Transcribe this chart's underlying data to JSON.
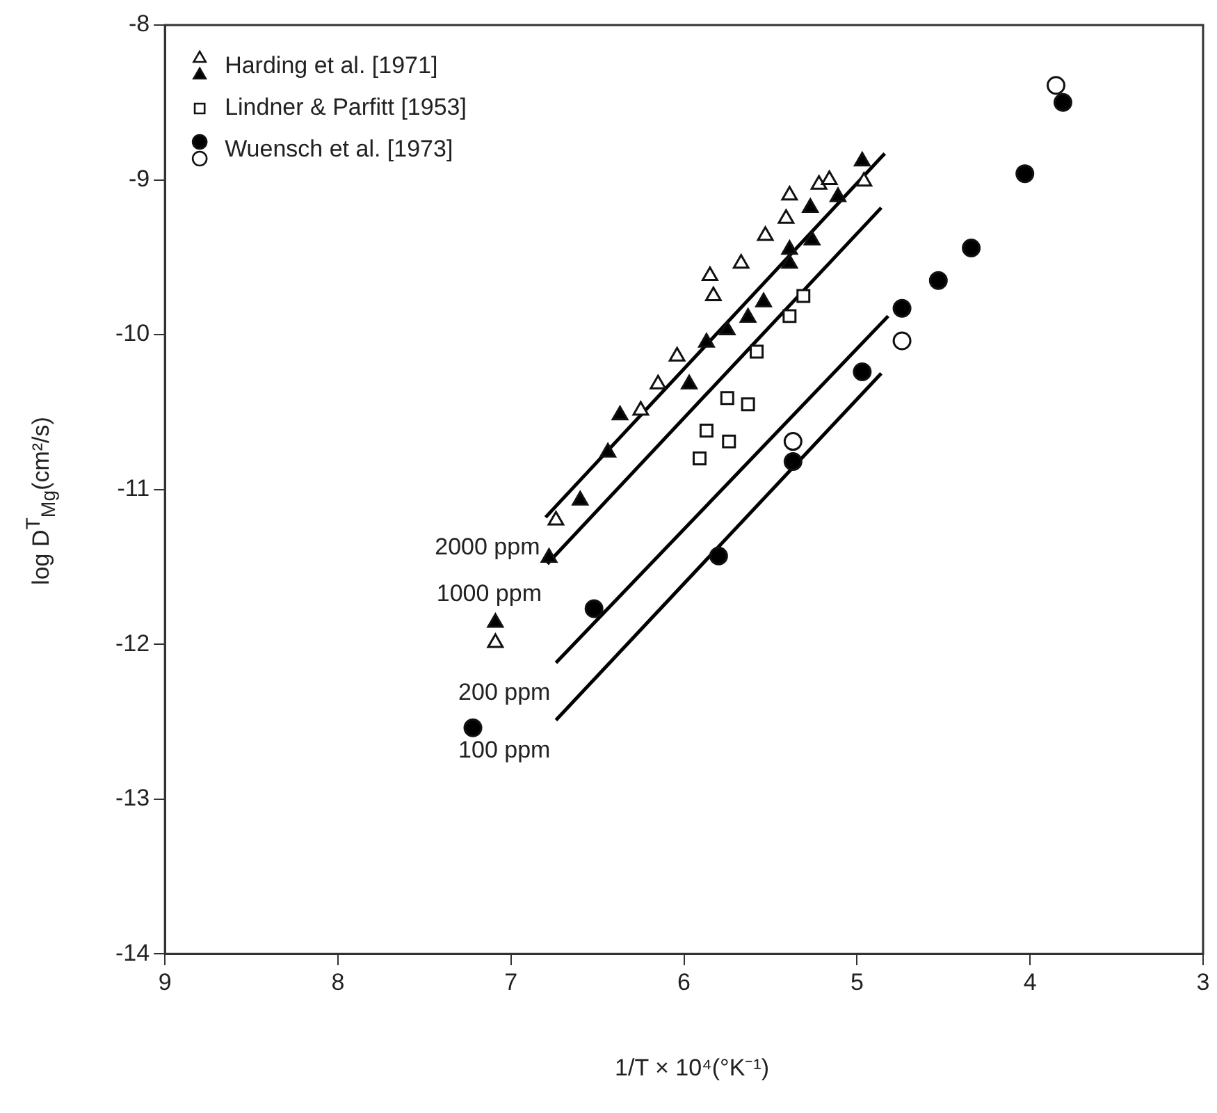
{
  "chart_data": {
    "type": "scatter",
    "xlabel": "1/T × 10⁴(°K⁻¹)",
    "ylabel": "log D$^{T}$$_{Mg}$(cm²/s)",
    "xlim": [
      9,
      3
    ],
    "ylim": [
      -14,
      -8
    ],
    "xticks": [
      9,
      8,
      7,
      6,
      5,
      4,
      3
    ],
    "yticks": [
      -14,
      -13,
      -12,
      -11,
      -10,
      -9,
      -8
    ],
    "grid": false,
    "legend": "top left",
    "series": [
      {
        "name": "Harding et al. [1971]",
        "marker": "triangle",
        "color": "#ffffff",
        "x": [
          6.74,
          7.09,
          5.39,
          5.41,
          5.53,
          5.67,
          5.85,
          5.83,
          6.04,
          6.15,
          6.25,
          5.22,
          5.16,
          4.96
        ],
        "values": [
          -11.2,
          -11.99,
          -9.1,
          -9.25,
          -9.36,
          -9.54,
          -9.62,
          -9.75,
          -10.14,
          -10.32,
          -10.49,
          -9.03,
          -9.0,
          -9.01
        ]
      },
      {
        "marker": "triangle",
        "color": "#000000",
        "x": [
          4.97,
          5.27,
          5.11,
          5.26,
          5.39,
          5.39,
          5.54,
          5.63,
          5.75,
          5.87,
          5.97,
          6.37,
          6.44,
          6.6,
          6.78,
          7.09
        ],
        "values": [
          -8.88,
          -9.18,
          -9.11,
          -9.39,
          -9.45,
          -9.54,
          -9.79,
          -9.89,
          -9.97,
          -10.05,
          -10.32,
          -10.52,
          -10.76,
          -11.07,
          -11.44,
          -11.86
        ]
      },
      {
        "name": "Lindner & Parfitt [1953]",
        "marker": "square",
        "color": "#ffffff",
        "x": [
          5.31,
          5.39,
          5.58,
          5.75,
          5.63,
          5.87,
          5.74,
          5.91
        ],
        "values": [
          -9.75,
          -9.88,
          -10.11,
          -10.41,
          -10.45,
          -10.62,
          -10.69,
          -10.8
        ]
      },
      {
        "name": "Wuensch et al. [1973]",
        "marker": "circle",
        "color": "#000000",
        "x": [
          3.81,
          4.03,
          4.34,
          4.53,
          4.74,
          4.97,
          5.37,
          5.8,
          6.52,
          7.22
        ],
        "values": [
          -8.5,
          -8.96,
          -9.44,
          -9.65,
          -9.83,
          -10.24,
          -10.82,
          -11.43,
          -11.77,
          -12.54
        ]
      },
      {
        "marker": "circle",
        "color": "#ffffff",
        "x": [
          3.85,
          4.74,
          5.37
        ],
        "values": [
          -8.39,
          -10.04,
          -10.69
        ]
      },
      {
        "type": "line",
        "marker": "none",
        "line_style": "solid",
        "color": "#000000",
        "x": [
          6.8,
          4.84
        ],
        "values": [
          -11.18,
          -8.83
        ]
      },
      {
        "type": "line",
        "marker": "none",
        "line_style": "solid",
        "color": "#000000",
        "x": [
          6.79,
          4.86
        ],
        "values": [
          -11.48,
          -9.18
        ]
      },
      {
        "type": "line",
        "marker": "none",
        "line_style": "solid",
        "color": "#000000",
        "x": [
          6.74,
          4.82
        ],
        "values": [
          -12.12,
          -9.88
        ]
      },
      {
        "type": "line",
        "marker": "none",
        "line_style": "solid",
        "color": "#000000",
        "x": [
          6.74,
          4.86
        ],
        "values": [
          -12.49,
          -10.25
        ]
      }
    ],
    "annotations": [
      "2000 ppm",
      "1000 ppm",
      "200 ppm",
      "100 ppm"
    ]
  }
}
